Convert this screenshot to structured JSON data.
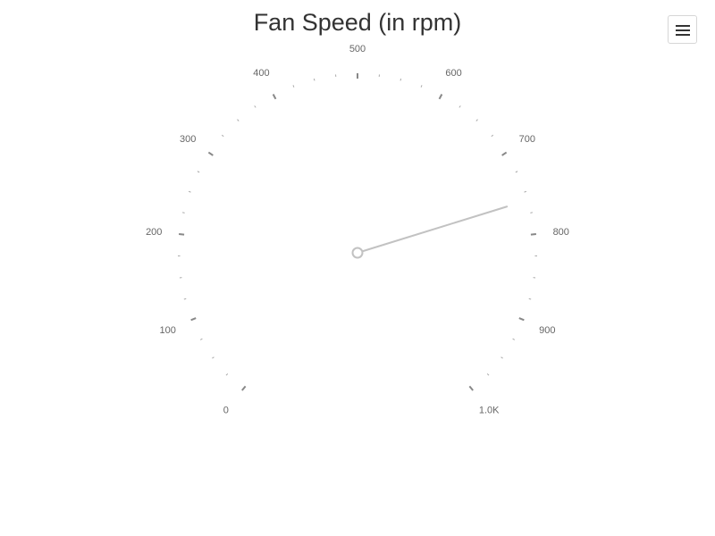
{
  "title": "Fan Speed (in rpm)",
  "menu": {
    "icon": "hamburger-menu-icon"
  },
  "colors": {
    "title": "#333333",
    "tick_major": "#888888",
    "tick_minor": "#aaaaaa",
    "label": "#666666",
    "needle": "#c2c2c2"
  },
  "chart_data": {
    "type": "gauge",
    "title": "Fan Speed (in rpm)",
    "min": 0,
    "max": 1000,
    "major_tick_interval": 100,
    "minor_tick_interval": 25,
    "tick_labels": [
      "0",
      "100",
      "200",
      "300",
      "400",
      "500",
      "600",
      "700",
      "800",
      "900",
      "1.0K"
    ],
    "value": 760
  }
}
